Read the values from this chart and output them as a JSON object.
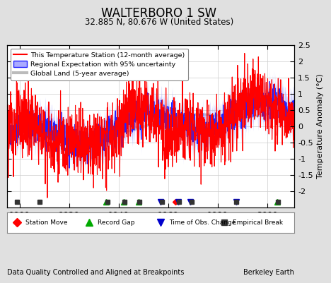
{
  "title": "WALTERBORO 1 SW",
  "subtitle": "32.885 N, 80.676 W (United States)",
  "ylabel": "Temperature Anomaly (°C)",
  "footer_left": "Data Quality Controlled and Aligned at Breakpoints",
  "footer_right": "Berkeley Earth",
  "xlim": [
    1895,
    2011
  ],
  "ylim": [
    -2.5,
    2.5
  ],
  "yticks": [
    -2,
    -1.5,
    -1,
    -0.5,
    0,
    0.5,
    1,
    1.5,
    2,
    2.5
  ],
  "ytick_labels": [
    "-2",
    "-1.5",
    "-1",
    "-0.5",
    "0",
    "0.5",
    "1",
    "1.5",
    "2",
    "2.5"
  ],
  "xticks": [
    1900,
    1920,
    1940,
    1960,
    1980,
    2000
  ],
  "station_color": "#FF0000",
  "regional_color": "#2222FF",
  "regional_fill": "#AAAAFF",
  "global_color": "#BBBBBB",
  "bg_color": "#E0E0E0",
  "plot_bg": "#FFFFFF",
  "grid_color": "#CCCCCC",
  "marker_items": [
    {
      "label": "Station Move",
      "color": "#FF0000",
      "marker": "D"
    },
    {
      "label": "Record Gap",
      "color": "#00AA00",
      "marker": "^"
    },
    {
      "label": "Time of Obs. Change",
      "color": "#0000CC",
      "marker": "v"
    },
    {
      "label": "Empirical Break",
      "color": "#333333",
      "marker": "s"
    }
  ],
  "station_moves": [
    1963.0
  ],
  "record_gaps": [
    1935.0,
    1942.0,
    1948.0,
    2004.0
  ],
  "tobs_changes": [
    1957.0,
    1964.0,
    1969.0,
    1987.5
  ],
  "empirical_breaks": [
    1899.0,
    1908.0,
    1935.5,
    1942.5,
    1948.5,
    1957.5,
    1964.5,
    1969.5,
    1987.5,
    2004.5
  ]
}
